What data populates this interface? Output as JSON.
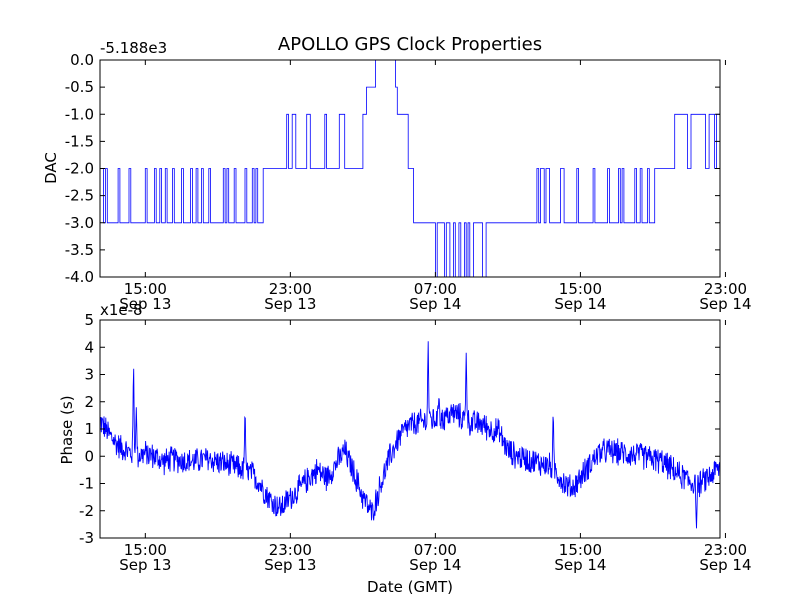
{
  "figure_title": "APOLLO GPS Clock Properties",
  "xlabel": "Date (GMT)",
  "colors": {
    "line": "#0000ff",
    "axes": "#000000",
    "background": "#ffffff"
  },
  "chart_data": [
    {
      "type": "line",
      "title": "APOLLO GPS Clock Properties",
      "ylabel": "DAC",
      "offset_label": "-5.188e3",
      "xlabel": "",
      "x_unit": "hours since Sep 13 12:30 GMT",
      "xlim": [
        0,
        34.2
      ],
      "ylim": [
        -4.0,
        0.0
      ],
      "yticks": [
        0.0,
        -0.5,
        -1.0,
        -1.5,
        -2.0,
        -2.5,
        -3.0,
        -3.5,
        -4.0
      ],
      "ytick_labels": [
        "0.0",
        "-0.5",
        "-1.0",
        "-1.5",
        "-2.0",
        "-2.5",
        "-3.0",
        "-3.5",
        "-4.0"
      ],
      "xticks": [
        2.5,
        10.5,
        18.5,
        26.5,
        34.5
      ],
      "xtick_labels": [
        {
          "time": "15:00",
          "date": "Sep 13"
        },
        {
          "time": "23:00",
          "date": "Sep 13"
        },
        {
          "time": "07:00",
          "date": "Sep 14"
        },
        {
          "time": "15:00",
          "date": "Sep 14"
        },
        {
          "time": "23:00",
          "date": "Sep 14"
        }
      ],
      "series": [
        {
          "name": "DAC",
          "step": true,
          "x": [
            0.0,
            0.2,
            0.3,
            0.4,
            1.0,
            1.1,
            1.6,
            1.7,
            2.5,
            2.6,
            3.0,
            3.1,
            3.3,
            3.4,
            3.6,
            3.7,
            4.0,
            4.1,
            4.5,
            4.6,
            5.0,
            5.1,
            5.3,
            5.4,
            5.6,
            5.7,
            6.0,
            6.1,
            6.8,
            6.9,
            7.0,
            7.1,
            7.4,
            7.5,
            8.0,
            8.1,
            8.4,
            8.5,
            8.6,
            8.7,
            9.0,
            10.3,
            10.4,
            10.6,
            10.8,
            11.4,
            11.6,
            12.4,
            12.5,
            13.2,
            13.5,
            14.5,
            14.7,
            15.2,
            15.4,
            16.3,
            16.4,
            16.6,
            17.0,
            17.3,
            17.5,
            18.5,
            18.6,
            19.0,
            19.1,
            19.3,
            19.5,
            19.6,
            19.8,
            19.9,
            20.1,
            20.2,
            20.3,
            20.4,
            20.6,
            21.1,
            21.3,
            24.1,
            24.2,
            24.3,
            24.5,
            24.6,
            24.8,
            25.4,
            25.6,
            26.3,
            26.4,
            27.2,
            27.3,
            28.0,
            28.1,
            28.6,
            28.7,
            28.8,
            28.9,
            29.5,
            29.6,
            29.8,
            29.9,
            30.2,
            30.3,
            30.6,
            30.8,
            31.6,
            31.7,
            32.4,
            32.6,
            33.4,
            33.6,
            33.9,
            34.0,
            34.2
          ],
          "y": [
            -2.0,
            -3.0,
            -2.0,
            -3.0,
            -2.0,
            -3.0,
            -2.0,
            -3.0,
            -2.0,
            -3.0,
            -2.0,
            -3.0,
            -2.0,
            -3.0,
            -2.0,
            -3.0,
            -2.0,
            -3.0,
            -2.0,
            -3.0,
            -2.0,
            -3.0,
            -2.0,
            -3.0,
            -2.0,
            -3.0,
            -2.0,
            -3.0,
            -2.0,
            -3.0,
            -2.0,
            -3.0,
            -2.0,
            -3.0,
            -2.0,
            -3.0,
            -2.0,
            -3.0,
            -2.0,
            -3.0,
            -2.0,
            -1.0,
            -2.0,
            -1.0,
            -2.0,
            -1.0,
            -2.0,
            -1.0,
            -2.0,
            -1.0,
            -2.0,
            -1.0,
            -0.5,
            0.0,
            0.0,
            -0.5,
            -1.0,
            -1.0,
            -2.0,
            -3.0,
            -3.0,
            -4.0,
            -3.0,
            -4.0,
            -3.0,
            -4.0,
            -3.0,
            -4.0,
            -3.0,
            -4.0,
            -3.0,
            -4.0,
            -3.0,
            -4.0,
            -3.0,
            -4.0,
            -3.0,
            -2.0,
            -3.0,
            -2.0,
            -3.0,
            -2.0,
            -3.0,
            -2.0,
            -3.0,
            -2.0,
            -3.0,
            -2.0,
            -3.0,
            -2.0,
            -3.0,
            -2.0,
            -3.0,
            -2.0,
            -3.0,
            -2.0,
            -3.0,
            -2.0,
            -3.0,
            -2.0,
            -3.0,
            -2.0,
            -2.0,
            -2.0,
            -1.0,
            -2.0,
            -1.0,
            -2.0,
            -1.0,
            -2.0,
            -1.0,
            -1.5
          ]
        }
      ]
    },
    {
      "type": "line",
      "title": "",
      "ylabel": "Phase (s)",
      "offset_label": "x1e-8",
      "xlabel": "Date (GMT)",
      "x_unit": "hours since Sep 13 12:30 GMT",
      "xlim": [
        0,
        34.2
      ],
      "ylim": [
        -3,
        5
      ],
      "yticks": [
        5,
        4,
        3,
        2,
        1,
        0,
        -1,
        -2,
        -3
      ],
      "ytick_labels": [
        "5",
        "4",
        "3",
        "2",
        "1",
        "0",
        "-1",
        "-2",
        "-3"
      ],
      "xticks": [
        2.5,
        10.5,
        18.5,
        26.5,
        34.5
      ],
      "xtick_labels": [
        {
          "time": "15:00",
          "date": "Sep 13"
        },
        {
          "time": "23:00",
          "date": "Sep 13"
        },
        {
          "time": "07:00",
          "date": "Sep 14"
        },
        {
          "time": "15:00",
          "date": "Sep 14"
        },
        {
          "time": "23:00",
          "date": "Sep 14"
        }
      ],
      "series": [
        {
          "name": "Phase",
          "noisy": true,
          "noise_amplitude": 0.55,
          "x": [
            0.0,
            0.5,
            1.0,
            1.5,
            2.0,
            2.5,
            3.0,
            3.5,
            4.0,
            5.0,
            6.0,
            7.0,
            8.0,
            8.5,
            9.0,
            9.5,
            10.0,
            10.5,
            11.0,
            11.5,
            12.0,
            12.5,
            13.0,
            13.5,
            14.0,
            14.5,
            15.0,
            15.5,
            16.0,
            16.5,
            17.0,
            18.0,
            19.0,
            19.5,
            20.0,
            20.5,
            21.0,
            21.5,
            22.0,
            22.5,
            23.0,
            24.0,
            25.0,
            25.5,
            26.0,
            26.5,
            27.0,
            27.5,
            28.0,
            29.0,
            30.0,
            31.0,
            32.0,
            33.0,
            33.5,
            34.2
          ],
          "y": [
            1.3,
            0.8,
            0.4,
            0.2,
            0.0,
            0.1,
            0.0,
            -0.2,
            -0.1,
            -0.2,
            -0.1,
            -0.3,
            -0.5,
            -0.7,
            -1.2,
            -1.7,
            -1.9,
            -1.5,
            -1.2,
            -0.8,
            -0.5,
            -0.8,
            -0.3,
            0.2,
            -0.6,
            -1.5,
            -2.1,
            -1.0,
            0.0,
            0.7,
            1.1,
            1.3,
            1.4,
            1.6,
            1.4,
            1.2,
            1.2,
            1.0,
            0.9,
            0.2,
            0.0,
            -0.2,
            -0.4,
            -0.9,
            -1.2,
            -0.8,
            -0.3,
            0.1,
            0.2,
            0.1,
            0.0,
            -0.2,
            -0.7,
            -1.1,
            -0.8,
            -0.4
          ],
          "spikes": [
            {
              "x": 1.85,
              "y": 3.6
            },
            {
              "x": 2.0,
              "y": 1.9
            },
            {
              "x": 8.0,
              "y": 1.9
            },
            {
              "x": 18.1,
              "y": 4.3
            },
            {
              "x": 18.7,
              "y": 2.3
            },
            {
              "x": 20.2,
              "y": 3.9
            },
            {
              "x": 25.0,
              "y": 1.8
            },
            {
              "x": 32.9,
              "y": -2.8
            }
          ]
        }
      ]
    }
  ]
}
